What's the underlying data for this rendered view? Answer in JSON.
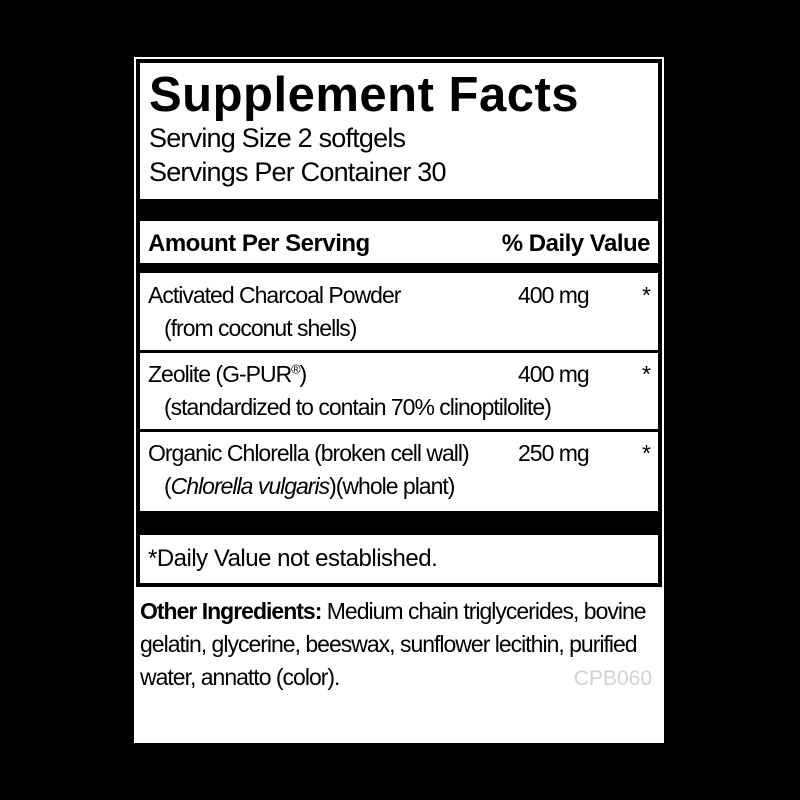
{
  "page": {
    "background_color": "#000000"
  },
  "label": {
    "background_color": "#ffffff",
    "panel": {
      "title": "Supplement Facts",
      "serving_size": "Serving Size 2 softgels",
      "servings_per_container": "Servings Per Container 30",
      "column_headers": {
        "left": "Amount Per Serving",
        "right": "% Daily Value"
      },
      "rows": [
        {
          "name": [
            {
              "text": "Activated Charcoal Powder"
            }
          ],
          "amount": "400 mg",
          "daily_value": "*",
          "detail": [
            {
              "text": "(from coconut shells)"
            }
          ]
        },
        {
          "name": [
            {
              "text": "Zeolite (G-PUR"
            },
            {
              "text": "®",
              "sup": true
            },
            {
              "text": ")"
            }
          ],
          "amount": "400 mg",
          "daily_value": "*",
          "detail": [
            {
              "text": "(standardized to contain 70% clinoptilolite)"
            }
          ]
        },
        {
          "name": [
            {
              "text": "Organic Chlorella (broken cell wall)"
            }
          ],
          "amount": "250 mg",
          "daily_value": "*",
          "detail": [
            {
              "text": "("
            },
            {
              "text": "Chlorella vulgaris",
              "italic": true
            },
            {
              "text": ")(whole plant)"
            }
          ]
        }
      ],
      "footnote": "*Daily Value not established."
    },
    "other_ingredients": {
      "label": "Other Ingredients:",
      "text": "Medium chain triglycerides, bovine gelatin, glycerine, beeswax, sunflower lecithin, purified water, annatto (color)."
    },
    "product_code": "CPB060",
    "product_code_color": "#d2d2d2"
  }
}
